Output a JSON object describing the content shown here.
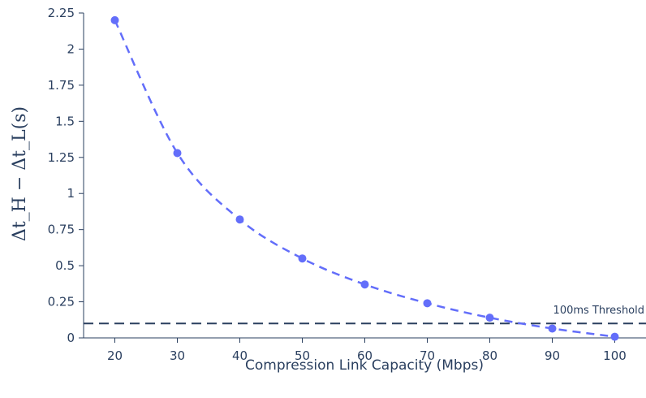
{
  "chart_data": {
    "type": "line",
    "x": [
      20,
      30,
      40,
      50,
      60,
      70,
      80,
      90,
      100
    ],
    "series": [
      {
        "values": [
          2.2,
          1.28,
          0.82,
          0.55,
          0.37,
          0.24,
          0.14,
          0.065,
          0.008
        ],
        "color": "#636efa",
        "line_style": "dashed",
        "markers": true
      }
    ],
    "xlabel": "Compression Link Capacity (Mbps)",
    "ylabel": "Δt_H − Δt_L(s)",
    "x_ticks": [
      "20",
      "30",
      "40",
      "50",
      "60",
      "70",
      "80",
      "90",
      "100"
    ],
    "y_ticks": [
      "0",
      "0.25",
      "0.5",
      "0.75",
      "1",
      "1.25",
      "1.5",
      "1.75",
      "2",
      "2.25"
    ],
    "xlim": [
      15,
      105
    ],
    "ylim": [
      0,
      2.25
    ],
    "grid": false,
    "threshold": {
      "value": 0.1,
      "label": "100ms Threshold",
      "color": "#2a3f5f",
      "line_style": "dashed"
    }
  }
}
